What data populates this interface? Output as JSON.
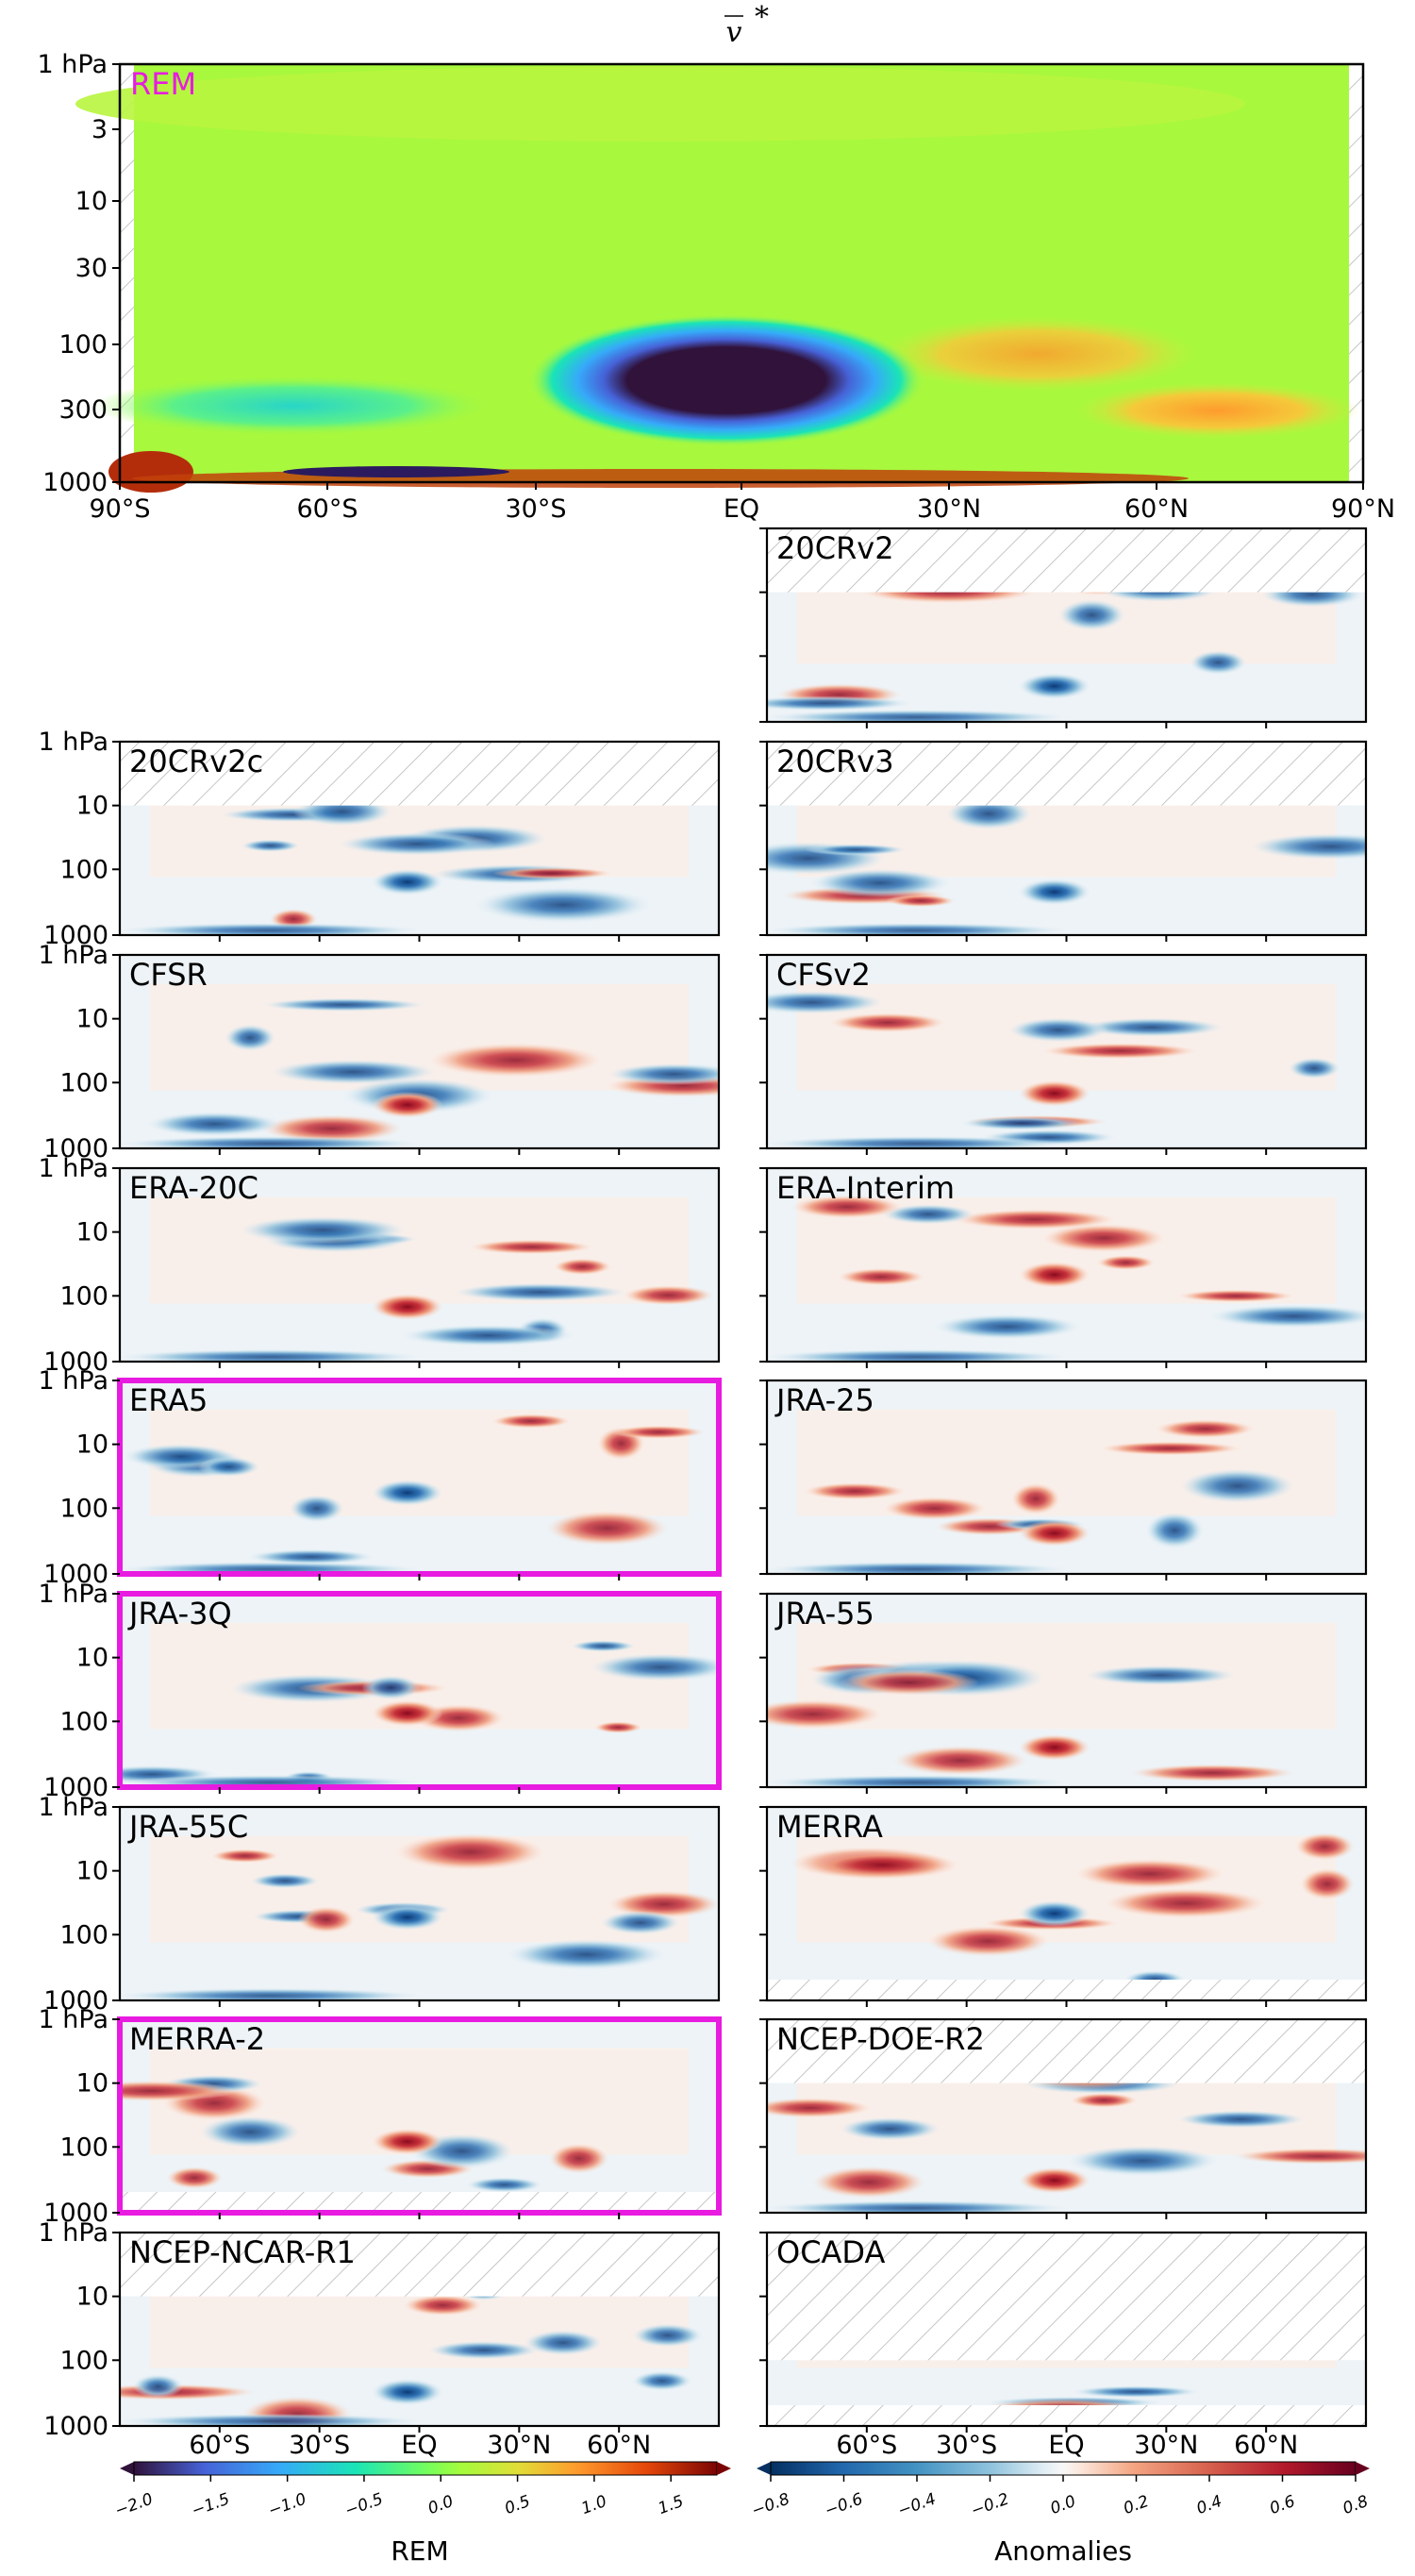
{
  "figure": {
    "title_var": "v",
    "title_sup": "*"
  },
  "y_ticks": [
    "1 hPa",
    "3",
    "10",
    "30",
    "100",
    "300",
    "1000"
  ],
  "y_ticks_small": [
    "1 hPa",
    "10",
    "100",
    "1000"
  ],
  "x_ticks_top": [
    "90°S",
    "60°S",
    "30°S",
    "EQ",
    "30°N",
    "60°N",
    "90°N"
  ],
  "x_ticks_bottom": [
    "60°S",
    "30°S",
    "EQ",
    "30°N",
    "60°N"
  ],
  "colors": {
    "highlight": "#e81be0",
    "rem_label": "#e81be0"
  },
  "chart_data": [
    {
      "type": "heatmap",
      "name": "REM",
      "title": "REM",
      "xlabel": "",
      "ylabel": "",
      "x_range": [
        "90°S",
        "90°N"
      ],
      "y_range_hPa": [
        1000,
        1
      ],
      "y_scale": "log",
      "colorbar": {
        "label": "REM",
        "ticks": [
          "−2.0",
          "−1.5",
          "−1.0",
          "−0.5",
          "0.0",
          "0.5",
          "1.0",
          "1.5"
        ],
        "min": -2.0,
        "max": 1.8
      }
    },
    {
      "type": "heatmap",
      "name": "anomalies",
      "colorbar": {
        "label": "Anomalies",
        "ticks": [
          "−0.8",
          "−0.6",
          "−0.4",
          "−0.2",
          "0.0",
          "0.2",
          "0.4",
          "0.6",
          "0.8"
        ],
        "min": -0.8,
        "max": 0.8
      },
      "panels": [
        {
          "name": "20CRv2",
          "highlighted": false
        },
        {
          "name": "20CRv2c",
          "highlighted": false
        },
        {
          "name": "20CRv3",
          "highlighted": false
        },
        {
          "name": "CFSR",
          "highlighted": false
        },
        {
          "name": "CFSv2",
          "highlighted": false
        },
        {
          "name": "ERA-20C",
          "highlighted": false
        },
        {
          "name": "ERA-Interim",
          "highlighted": false
        },
        {
          "name": "ERA5",
          "highlighted": true
        },
        {
          "name": "JRA-25",
          "highlighted": false
        },
        {
          "name": "JRA-3Q",
          "highlighted": true
        },
        {
          "name": "JRA-55",
          "highlighted": false
        },
        {
          "name": "JRA-55C",
          "highlighted": false
        },
        {
          "name": "MERRA",
          "highlighted": false
        },
        {
          "name": "MERRA-2",
          "highlighted": true
        },
        {
          "name": "NCEP-DOE-R2",
          "highlighted": false
        },
        {
          "name": "NCEP-NCAR-R1",
          "highlighted": false
        },
        {
          "name": "OCADA",
          "highlighted": false
        }
      ]
    }
  ]
}
